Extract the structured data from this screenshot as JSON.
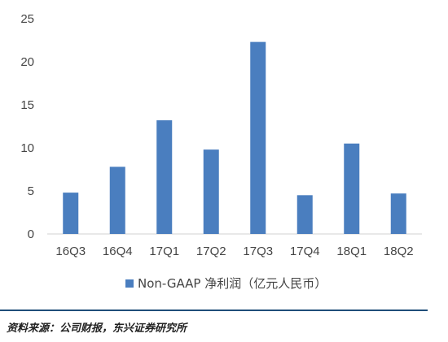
{
  "chart_data": {
    "type": "bar",
    "categories": [
      "16Q3",
      "16Q4",
      "17Q1",
      "17Q2",
      "17Q3",
      "17Q4",
      "18Q1",
      "18Q2"
    ],
    "series": [
      {
        "name": "Non-GAAP 净利润（亿元人民币）",
        "values": [
          4.8,
          7.8,
          13.2,
          9.8,
          22.3,
          4.5,
          10.5,
          4.7
        ]
      }
    ],
    "ylim": [
      0,
      25
    ],
    "yticks": [
      0,
      5,
      10,
      15,
      20,
      25
    ],
    "grid": false,
    "legend_position": "bottom",
    "bar_color": "#4a7ebf"
  },
  "footer": {
    "source": "资料来源：公司财报，东兴证券研究所"
  }
}
